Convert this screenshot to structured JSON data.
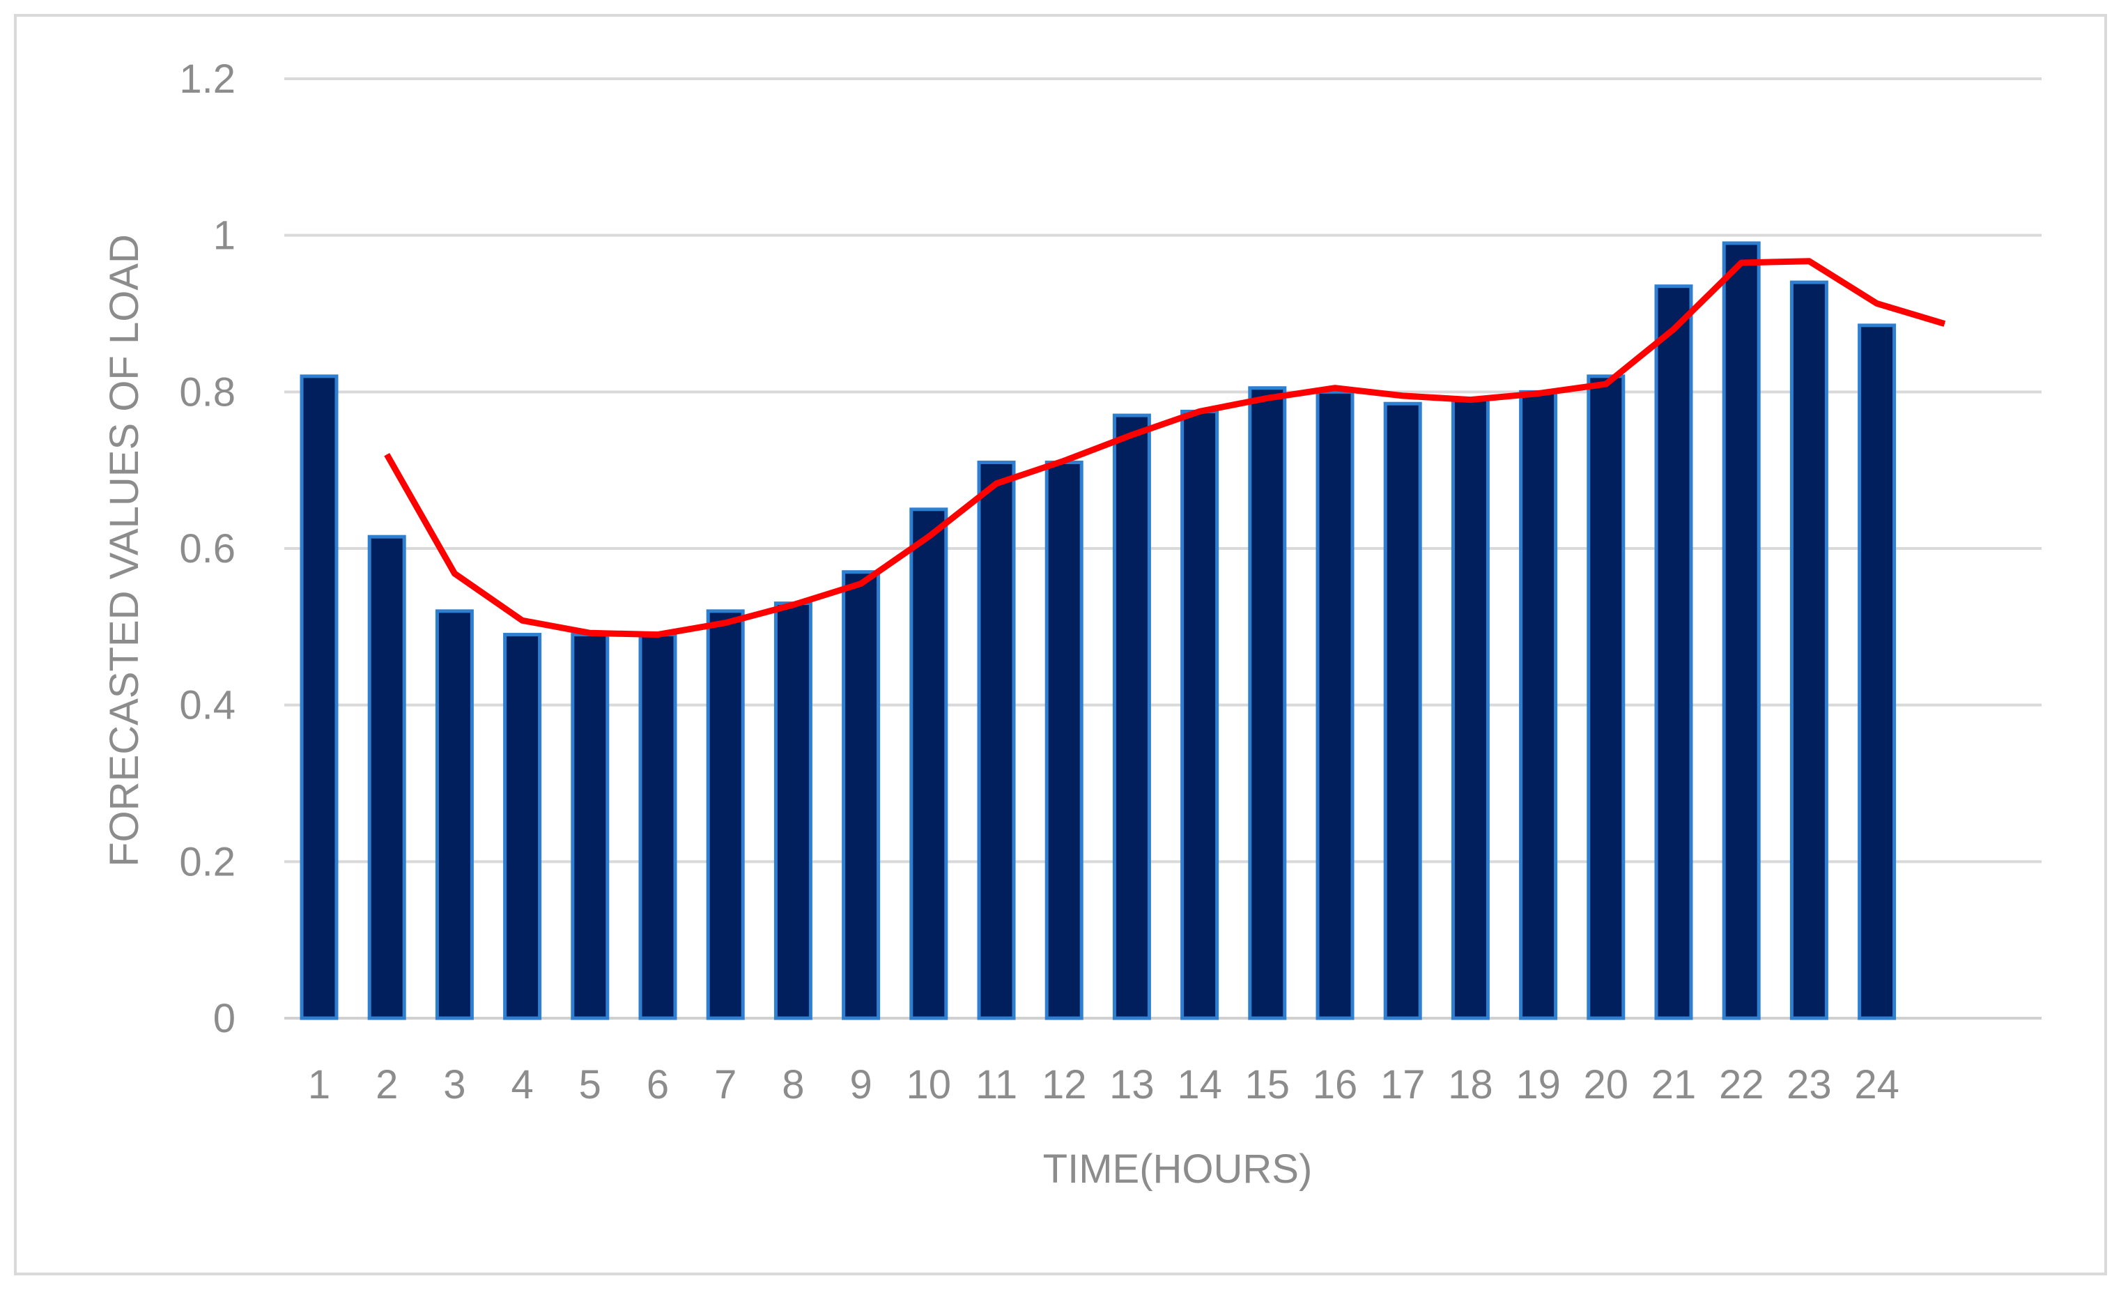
{
  "chart_data": {
    "type": "bar",
    "xlabel": "TIME(HOURS)",
    "ylabel": "FORECASTED VALUES OF  LOAD",
    "ylim": [
      0,
      1.2
    ],
    "yticks": [
      "0",
      "0.2",
      "0.4",
      "0.6",
      "0.8",
      "1",
      "1.2"
    ],
    "grid": "horizontal",
    "categories": [
      "1",
      "2",
      "3",
      "4",
      "5",
      "6",
      "7",
      "8",
      "9",
      "10",
      "11",
      "12",
      "13",
      "14",
      "15",
      "16",
      "17",
      "18",
      "19",
      "20",
      "21",
      "22",
      "23",
      "24"
    ],
    "series": [
      {
        "type": "bar",
        "color": "#001f5c",
        "edge_color": "#2f7fd1",
        "values": [
          0.82,
          0.615,
          0.52,
          0.49,
          0.49,
          0.49,
          0.52,
          0.53,
          0.57,
          0.65,
          0.71,
          0.71,
          0.77,
          0.775,
          0.805,
          0.8,
          0.785,
          0.79,
          0.8,
          0.82,
          0.935,
          0.99,
          0.94,
          0.885
        ]
      },
      {
        "type": "line",
        "color": "#ff0000",
        "note": "plotted at x = 2..25 (one position past the last category)",
        "x": [
          2,
          3,
          4,
          5,
          6,
          7,
          8,
          9,
          10,
          11,
          12,
          13,
          14,
          15,
          16,
          17,
          18,
          19,
          20,
          21,
          22,
          23,
          24,
          25
        ],
        "values": [
          0.72,
          0.568,
          0.508,
          0.492,
          0.49,
          0.505,
          0.528,
          0.555,
          0.615,
          0.683,
          0.712,
          0.745,
          0.775,
          0.792,
          0.805,
          0.795,
          0.79,
          0.798,
          0.81,
          0.88,
          0.965,
          0.967,
          0.913,
          0.887
        ]
      }
    ]
  }
}
